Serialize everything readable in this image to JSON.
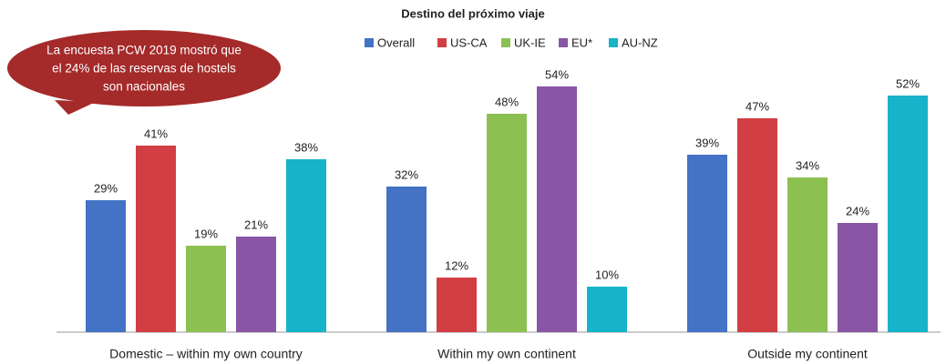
{
  "chart_data": {
    "type": "bar",
    "title": "Destino del próximo viaje",
    "annotation": [
      "La encuesta PCW 2019 mostró que",
      "el 24% de las reservas de hostels",
      "son nacionales"
    ],
    "categories": [
      "Domestic – within my own country",
      "Within my own continent",
      "Outside my continent"
    ],
    "series": [
      {
        "name": "Overall",
        "color": "#4472c4",
        "values": [
          29,
          32,
          39
        ],
        "value_labels": [
          "29%",
          "32%",
          "39%"
        ]
      },
      {
        "name": "US-CA",
        "color": "#d13e43",
        "values": [
          41,
          12,
          47
        ],
        "value_labels": [
          "41%",
          "12%",
          "47%"
        ]
      },
      {
        "name": "UK-IE",
        "color": "#8cc152",
        "values": [
          19,
          48,
          34
        ],
        "value_labels": [
          "19%",
          "48%",
          "34%"
        ]
      },
      {
        "name": "EU*",
        "color": "#8856a5",
        "values": [
          21,
          54,
          24
        ],
        "value_labels": [
          "21%",
          "54%",
          "24%"
        ]
      },
      {
        "name": "AU-NZ",
        "color": "#16b3c9",
        "values": [
          38,
          10,
          52
        ],
        "value_labels": [
          "38%",
          "10%",
          "52%"
        ]
      }
    ],
    "legend": "top"
  }
}
